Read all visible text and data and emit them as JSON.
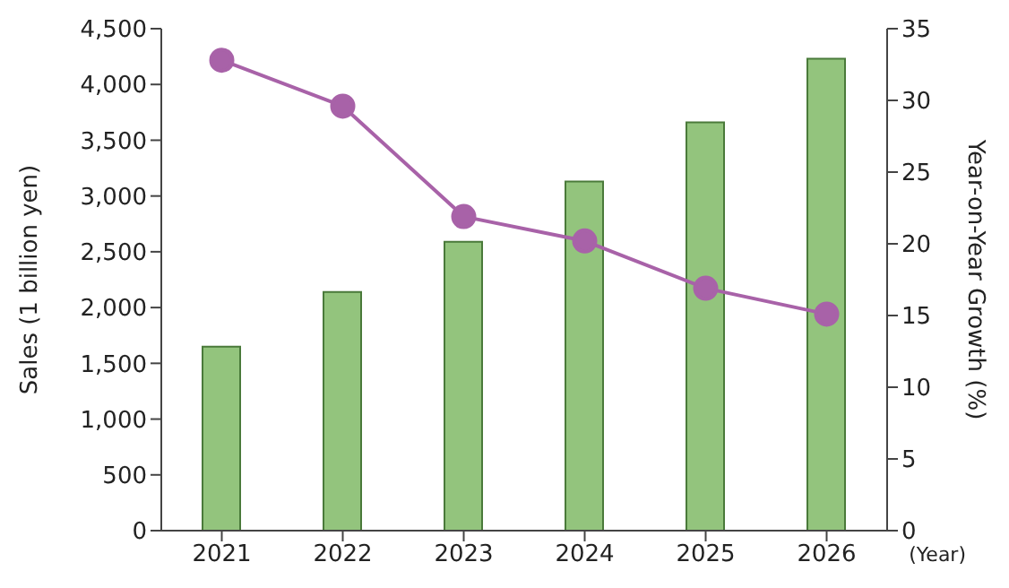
{
  "chart_data": {
    "type": "bar",
    "categories": [
      "2021",
      "2022",
      "2023",
      "2024",
      "2025",
      "2026"
    ],
    "xlabel": "(Year)",
    "ylabel": "Sales (1 billion yen)",
    "y2label": "Year-on-Year Growth (%)",
    "series": [
      {
        "color": "#93c47d",
        "values": [
          1650,
          2140,
          2590,
          3130,
          3660,
          4230
        ]
      },
      {
        "type": "line",
        "axis": "y2",
        "color": "#a862a8",
        "marker": "circle",
        "values": [
          32.8,
          29.6,
          21.9,
          20.2,
          16.9,
          15.1
        ]
      }
    ],
    "ylim": [
      0,
      4500
    ],
    "yticks": [
      {
        "value": 0,
        "label": "0"
      },
      {
        "value": 500,
        "label": "500"
      },
      {
        "value": 1000,
        "label": "1,000"
      },
      {
        "value": 1500,
        "label": "1,500"
      },
      {
        "value": 2000,
        "label": "2,000"
      },
      {
        "value": 2500,
        "label": "2,500"
      },
      {
        "value": 3000,
        "label": "3,000"
      },
      {
        "value": 3500,
        "label": "3,500"
      },
      {
        "value": 4000,
        "label": "4,000"
      },
      {
        "value": 4500,
        "label": "4,500"
      }
    ],
    "y2lim": [
      0,
      35
    ],
    "y2ticks": [
      0,
      5,
      10,
      15,
      20,
      25,
      30,
      35
    ],
    "grid": false
  }
}
